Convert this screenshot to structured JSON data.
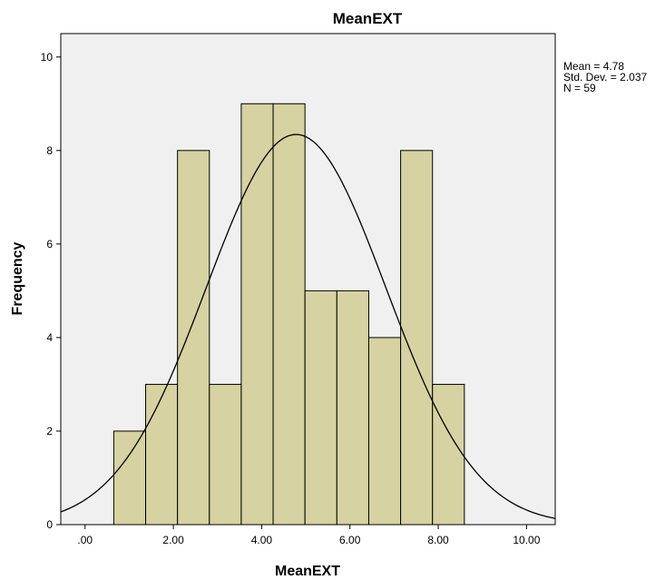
{
  "chart_data": {
    "type": "bar",
    "subtype": "histogram",
    "title": "MeanEXT",
    "xlabel": "MeanEXT",
    "ylabel": "Frequency",
    "xlim": [
      -0.55,
      10.65
    ],
    "ylim": [
      0,
      10.5
    ],
    "x_ticks": [
      0,
      2,
      4,
      6,
      8,
      10
    ],
    "x_tick_labels": [
      ".00",
      "2.00",
      "4.00",
      "6.00",
      "8.00",
      "10.00"
    ],
    "y_ticks": [
      0,
      2,
      4,
      6,
      8,
      10
    ],
    "y_tick_labels": [
      "0",
      "2",
      "4",
      "6",
      "8",
      "10"
    ],
    "bin_edges": [
      0.65,
      1.372,
      2.094,
      2.816,
      3.538,
      4.26,
      4.982,
      5.704,
      6.426,
      7.148,
      7.87,
      8.592
    ],
    "bin_edges_note": "",
    "frequencies": [
      2,
      3,
      8,
      3,
      9,
      9,
      5,
      5,
      4,
      8,
      3
    ],
    "normal_curve": {
      "mean": 4.78,
      "std_dev": 2.037,
      "n": 59
    },
    "stats_labels": [
      "Mean = 4.78",
      "Std. Dev. = 2.037",
      "N = 59"
    ],
    "grid": false,
    "legend": "none",
    "colors": {
      "bar_fill": "#d6d2a1",
      "bar_stroke": "#000000",
      "plot_background": "#f0f0f0",
      "curve": "#000000"
    }
  }
}
